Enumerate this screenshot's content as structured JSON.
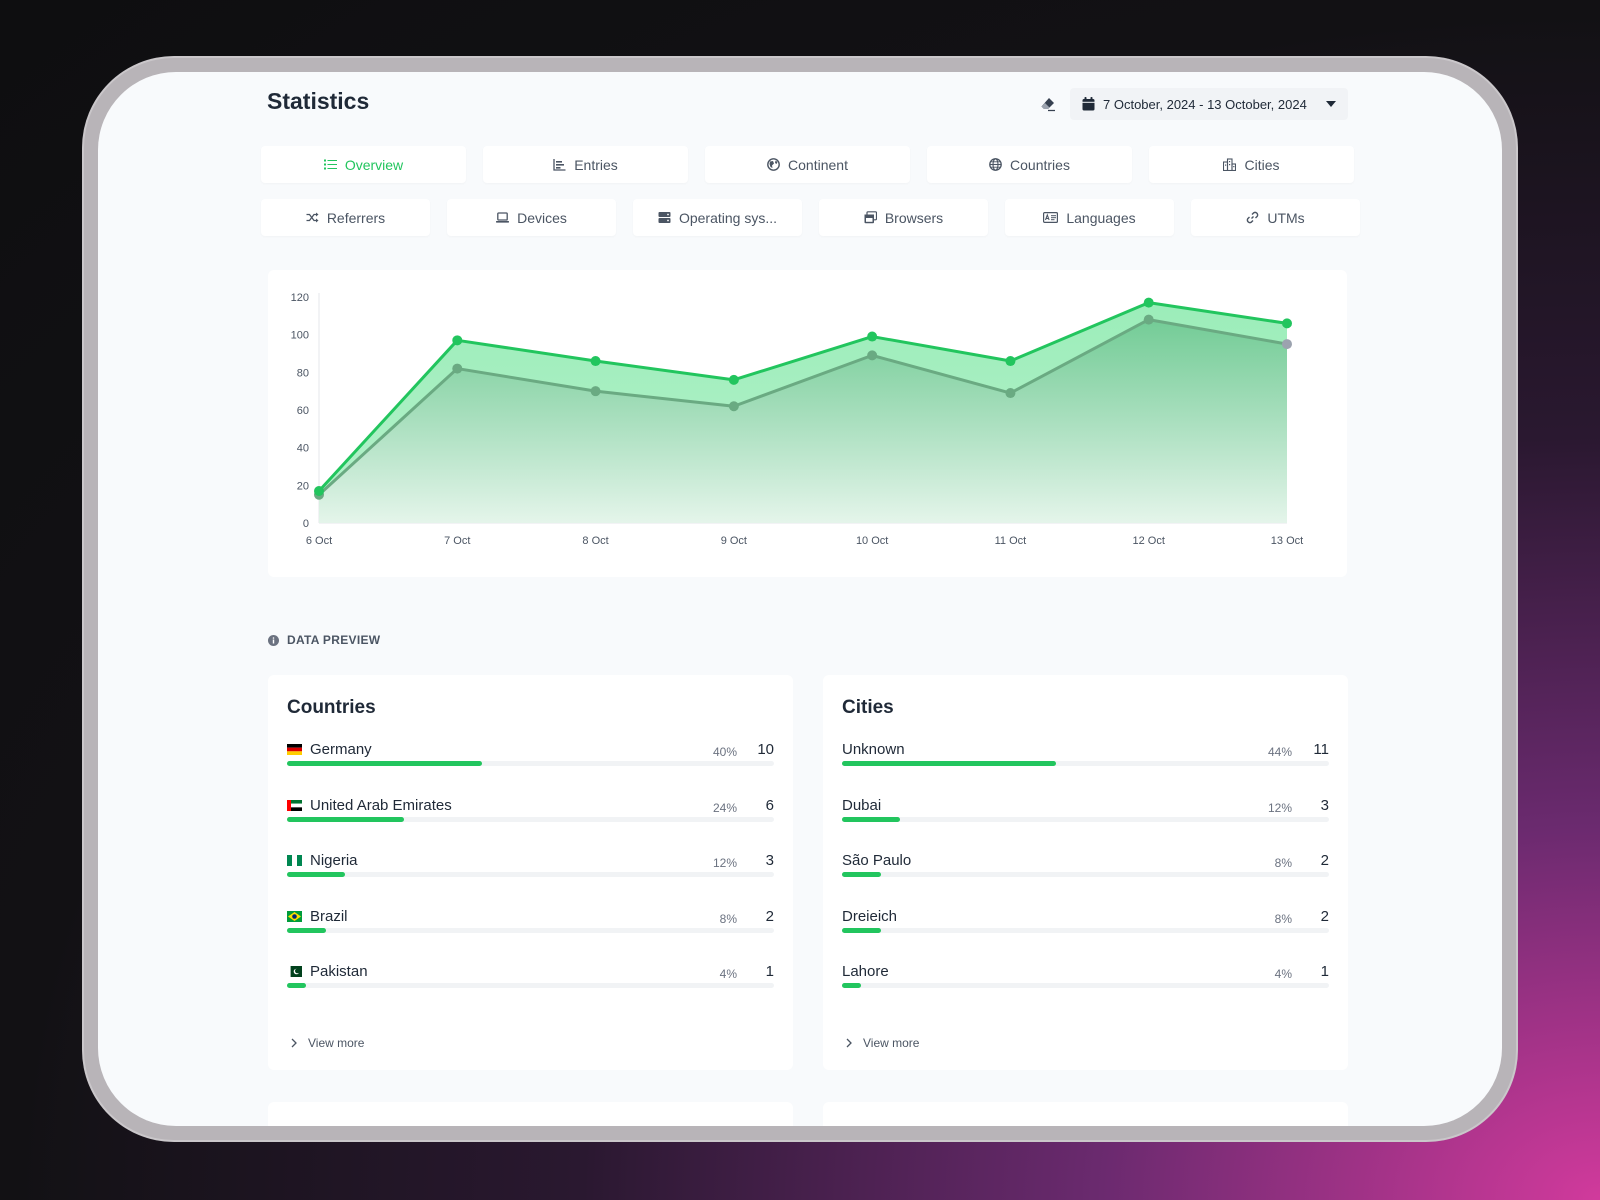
{
  "header": {
    "title": "Statistics",
    "date_range": "7 October, 2024 - 13 October, 2024"
  },
  "tabs_row1": [
    {
      "label": "Overview",
      "icon": "list-icon",
      "active": true
    },
    {
      "label": "Entries",
      "icon": "bar-chart-icon"
    },
    {
      "label": "Continent",
      "icon": "earth-icon"
    },
    {
      "label": "Countries",
      "icon": "globe-icon"
    },
    {
      "label": "Cities",
      "icon": "city-icon"
    }
  ],
  "tabs_row2": [
    {
      "label": "Referrers",
      "icon": "shuffle-icon"
    },
    {
      "label": "Devices",
      "icon": "laptop-icon"
    },
    {
      "label": "Operating sys...",
      "icon": "server-icon"
    },
    {
      "label": "Browsers",
      "icon": "window-icon"
    },
    {
      "label": "Languages",
      "icon": "language-icon"
    },
    {
      "label": "UTMs",
      "icon": "link-icon"
    }
  ],
  "chart_data": {
    "type": "area",
    "categories": [
      "6 Oct",
      "7 Oct",
      "8 Oct",
      "9 Oct",
      "10 Oct",
      "11 Oct",
      "12 Oct",
      "13 Oct"
    ],
    "series": [
      {
        "values": [
          17,
          97,
          86,
          76,
          99,
          86,
          117,
          106
        ],
        "color": "#22c55e"
      },
      {
        "values": [
          15,
          82,
          70,
          62,
          89,
          69,
          108,
          95
        ],
        "color": "#6aaa82"
      }
    ],
    "ylim": [
      0,
      120
    ],
    "yticks": [
      0,
      20,
      40,
      60,
      80,
      100,
      120
    ],
    "grid": false
  },
  "section_label": "DATA PREVIEW",
  "countries": {
    "title": "Countries",
    "items": [
      {
        "label": "Germany",
        "pct": "40%",
        "value": "10",
        "flag": "de",
        "fraction": 0.4
      },
      {
        "label": "United Arab Emirates",
        "pct": "24%",
        "value": "6",
        "flag": "ae",
        "fraction": 0.24
      },
      {
        "label": "Nigeria",
        "pct": "12%",
        "value": "3",
        "flag": "ng",
        "fraction": 0.12
      },
      {
        "label": "Brazil",
        "pct": "8%",
        "value": "2",
        "flag": "br",
        "fraction": 0.08
      },
      {
        "label": "Pakistan",
        "pct": "4%",
        "value": "1",
        "flag": "pk",
        "fraction": 0.04
      }
    ],
    "view_more": "View more"
  },
  "cities": {
    "title": "Cities",
    "items": [
      {
        "label": "Unknown",
        "pct": "44%",
        "value": "11",
        "fraction": 0.44
      },
      {
        "label": "Dubai",
        "pct": "12%",
        "value": "3",
        "fraction": 0.12
      },
      {
        "label": "São Paulo",
        "pct": "8%",
        "value": "2",
        "fraction": 0.08
      },
      {
        "label": "Dreieich",
        "pct": "8%",
        "value": "2",
        "fraction": 0.08
      },
      {
        "label": "Lahore",
        "pct": "4%",
        "value": "1",
        "fraction": 0.04
      }
    ],
    "view_more": "View more"
  }
}
